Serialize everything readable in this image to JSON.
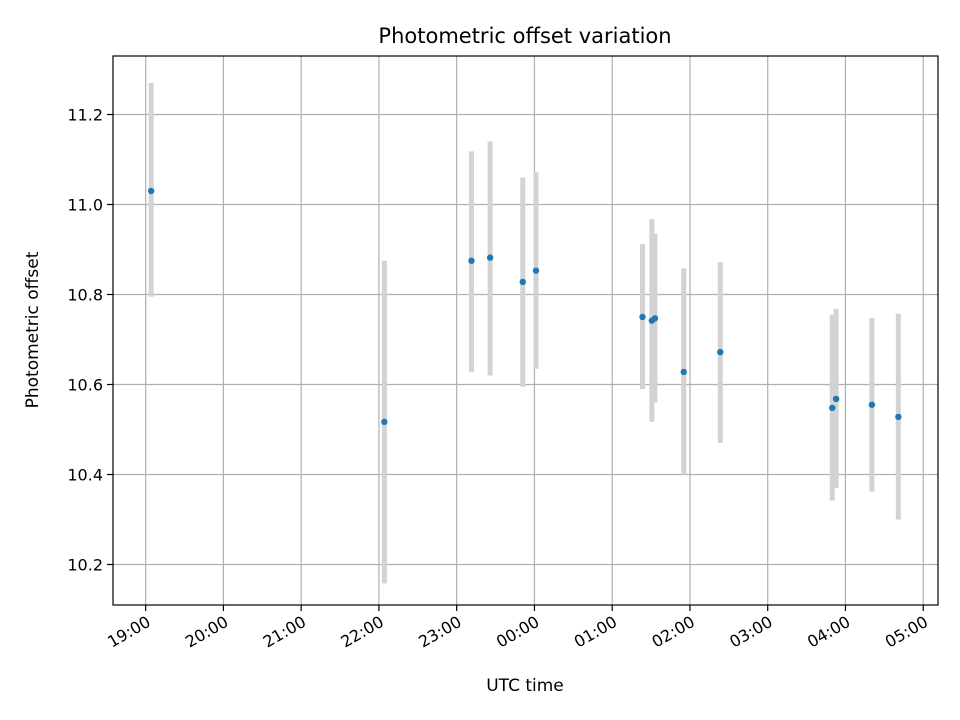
{
  "chart_data": {
    "type": "scatter",
    "title": "Photometric offset variation",
    "xlabel": "UTC time",
    "ylabel": "Photometric offset",
    "x_unit": "hours",
    "x_ticks": [
      19,
      20,
      21,
      22,
      23,
      24,
      25,
      26,
      27,
      28,
      29
    ],
    "x_tick_labels": [
      "19:00",
      "20:00",
      "21:00",
      "22:00",
      "23:00",
      "00:00",
      "01:00",
      "02:00",
      "03:00",
      "04:00",
      "05:00"
    ],
    "xlim": [
      18.58,
      29.19
    ],
    "ylim": [
      10.11,
      11.33
    ],
    "y_ticks": [
      10.2,
      10.4,
      10.6,
      10.8,
      11.0,
      11.2
    ],
    "y_tick_labels": [
      "10.2",
      "10.4",
      "10.6",
      "10.8",
      "11.0",
      "11.2"
    ],
    "grid": true,
    "colors": {
      "point": "#1f77b4",
      "errorbar": "#d3d3d3",
      "grid": "#b0b0b0"
    },
    "points": [
      {
        "time": "19:04",
        "x": 19.07,
        "y": 11.03,
        "ylow": 10.795,
        "yhigh": 11.27
      },
      {
        "time": "22:04",
        "x": 22.07,
        "y": 10.517,
        "ylow": 10.158,
        "yhigh": 10.875
      },
      {
        "time": "23:11",
        "x": 23.19,
        "y": 10.875,
        "ylow": 10.628,
        "yhigh": 11.118
      },
      {
        "time": "23:26",
        "x": 23.43,
        "y": 10.882,
        "ylow": 10.62,
        "yhigh": 11.14
      },
      {
        "time": "23:51",
        "x": 23.85,
        "y": 10.828,
        "ylow": 10.595,
        "yhigh": 11.06
      },
      {
        "time": "00:01",
        "x": 24.02,
        "y": 10.853,
        "ylow": 10.635,
        "yhigh": 11.072
      },
      {
        "time": "01:24",
        "x": 25.39,
        "y": 10.75,
        "ylow": 10.59,
        "yhigh": 10.912
      },
      {
        "time": "01:31",
        "x": 25.51,
        "y": 10.742,
        "ylow": 10.517,
        "yhigh": 10.968
      },
      {
        "time": "01:33",
        "x": 25.55,
        "y": 10.747,
        "ylow": 10.56,
        "yhigh": 10.935
      },
      {
        "time": "01:55",
        "x": 25.92,
        "y": 10.628,
        "ylow": 10.4,
        "yhigh": 10.858
      },
      {
        "time": "02:24",
        "x": 26.39,
        "y": 10.672,
        "ylow": 10.47,
        "yhigh": 10.872
      },
      {
        "time": "03:50",
        "x": 27.83,
        "y": 10.548,
        "ylow": 10.342,
        "yhigh": 10.755
      },
      {
        "time": "03:53",
        "x": 27.88,
        "y": 10.568,
        "ylow": 10.37,
        "yhigh": 10.768
      },
      {
        "time": "04:20",
        "x": 28.34,
        "y": 10.555,
        "ylow": 10.362,
        "yhigh": 10.748
      },
      {
        "time": "04:41",
        "x": 28.68,
        "y": 10.528,
        "ylow": 10.3,
        "yhigh": 10.757
      }
    ]
  }
}
